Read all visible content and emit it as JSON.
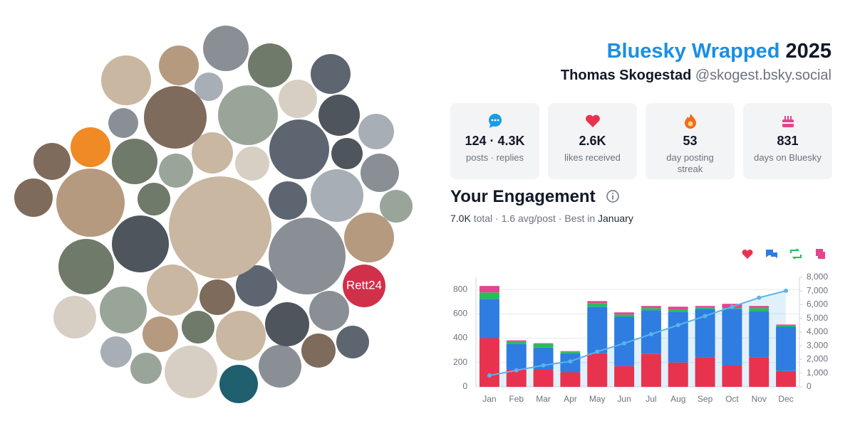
{
  "header": {
    "title_brand": "Bluesky Wrapped",
    "title_year": "2025",
    "name": "Thomas Skogestad",
    "handle": "@skogest.bsky.social"
  },
  "avatar_logo": "Rett24",
  "stats": [
    {
      "value": "124 · 4.3K",
      "label": "posts · replies"
    },
    {
      "value": "2.6K",
      "label": "likes received"
    },
    {
      "value": "53",
      "label": "day posting streak"
    },
    {
      "value": "831",
      "label": "days on Bluesky"
    }
  ],
  "engagement": {
    "title": "Your Engagement",
    "summary": [
      "7.0K",
      " total · 1.6 avg/post · Best in ",
      "January"
    ],
    "chart": {
      "type": "bar",
      "stacked": true,
      "grid": true,
      "categories": [
        "Jan",
        "Feb",
        "Mar",
        "Apr",
        "May",
        "Jun",
        "Jul",
        "Aug",
        "Sep",
        "Oct",
        "Nov",
        "Dec"
      ],
      "series": [
        {
          "color": "#e8334f",
          "values": [
            400,
            140,
            140,
            120,
            276,
            170,
            270,
            200,
            245,
            175,
            245,
            130
          ]
        },
        {
          "color": "#2f7de1",
          "values": [
            323,
            213,
            183,
            156,
            383,
            406,
            359,
            418,
            396,
            466,
            379,
            364
          ]
        },
        {
          "color": "#22c05a",
          "values": [
            53,
            17,
            30,
            12,
            29,
            18,
            18,
            17,
            12,
            6,
            23,
            12
          ]
        },
        {
          "color": "#e5448e",
          "values": [
            53,
            12,
            6,
            6,
            17,
            18,
            18,
            24,
            12,
            35,
            18,
            6
          ]
        }
      ],
      "line": {
        "type": "line",
        "axis": "y2",
        "color": "#5ab4ec",
        "values": [
          830,
          1210,
          1570,
          1860,
          2570,
          3180,
          3850,
          4510,
          5170,
          5850,
          6510,
          7020
        ]
      },
      "ylim": [
        0,
        900
      ],
      "yticks": [
        0,
        200,
        400,
        600,
        800
      ],
      "y2lim": [
        0,
        8000
      ],
      "y2ticks": [
        0,
        {
          "value": 1000,
          "label": "1,000"
        },
        {
          "value": 2000,
          "label": "2,000"
        },
        {
          "value": 3000,
          "label": "3,000"
        },
        {
          "value": 4000,
          "label": "4,000"
        },
        {
          "value": 5000,
          "label": "5,000"
        },
        {
          "value": 6000,
          "label": "6,000"
        },
        {
          "value": 7000,
          "label": "7,000"
        },
        {
          "value": 8000,
          "label": "8,000"
        }
      ]
    }
  }
}
